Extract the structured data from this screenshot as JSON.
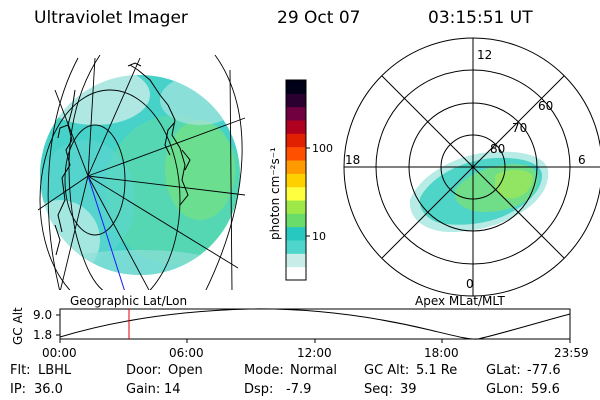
{
  "header": {
    "title": "Ultraviolet Imager",
    "date": "29 Oct 07",
    "time": "03:15:51 UT"
  },
  "left_panel": {
    "caption": "Geographic Lat/Lon"
  },
  "right_panel": {
    "caption": "Apex MLat/MLT",
    "mlt_labels": [
      "12",
      "18",
      "6",
      "0"
    ],
    "lat_labels": [
      "60",
      "70",
      "80"
    ]
  },
  "colorbar": {
    "label": "photon cm⁻²s⁻¹",
    "ticks": [
      "100",
      "10"
    ],
    "scale": "log",
    "colors": [
      "#ffffff",
      "#c8ece8",
      "#4fd6cc",
      "#27c8c0",
      "#6adc6a",
      "#9ee84a",
      "#ffff40",
      "#ffd000",
      "#ff9a00",
      "#ff5000",
      "#e02000",
      "#b00020",
      "#700040",
      "#2a0030",
      "#000018"
    ]
  },
  "orbit": {
    "ylabel": "GC Alt",
    "y_ticks": [
      "9.0",
      "1.8"
    ],
    "x_ticks": [
      "00:00",
      "06:00",
      "12:00",
      "18:00",
      "23:59"
    ],
    "current_time_label": "03:15:51"
  },
  "info": {
    "row1": [
      {
        "label": "Flt:",
        "value": "LBHL"
      },
      {
        "label": "Door:",
        "value": "Open"
      },
      {
        "label": "Mode:",
        "value": "Normal"
      },
      {
        "label": "GC Alt:",
        "value": "5.1 Re"
      },
      {
        "label": "GLat:",
        "value": "-77.6"
      }
    ],
    "row2": [
      {
        "label": "IP:",
        "value": "36.0"
      },
      {
        "label": "Gain:",
        "value": "14"
      },
      {
        "label": "Dsp:",
        "value": "-7.9"
      },
      {
        "label": "Seq:",
        "value": "39"
      },
      {
        "label": "GLon:",
        "value": "59.6"
      }
    ]
  }
}
